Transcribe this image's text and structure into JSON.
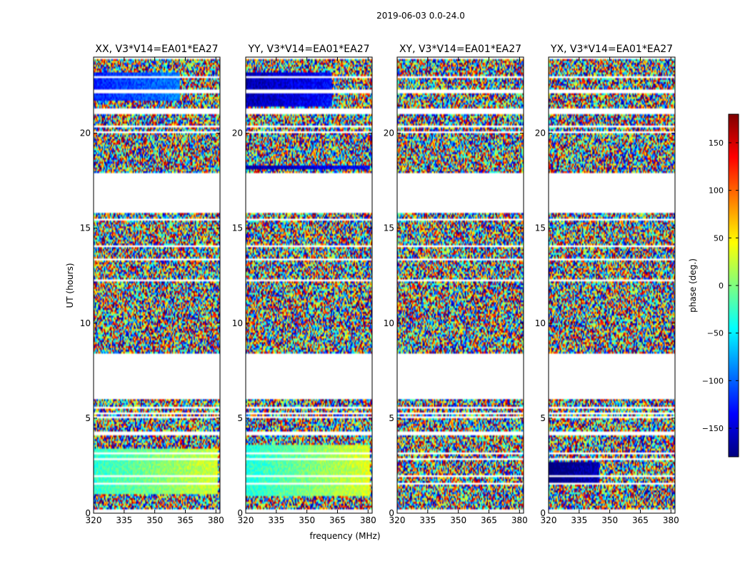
{
  "figure": {
    "suptitle": "2019-06-03 0.0-24.0",
    "xlabel": "frequency (MHz)",
    "ylabel": "UT (hours)"
  },
  "colormap": [
    "#00007f",
    "#0000ff",
    "#007fff",
    "#00ffff",
    "#7fff7f",
    "#ffff00",
    "#ff7f00",
    "#ff0000",
    "#7f0000"
  ],
  "chart_data": {
    "type": "heatmap",
    "x_axis": {
      "label": "frequency (MHz)",
      "range": [
        320,
        382
      ],
      "ticks": [
        320,
        335,
        350,
        365,
        380
      ]
    },
    "y_axis": {
      "label": "UT (hours)",
      "range": [
        0,
        24
      ],
      "ticks": [
        0,
        5,
        10,
        15,
        20
      ]
    },
    "colorbar": {
      "label": "phase (deg.)",
      "range": [
        -180,
        180
      ],
      "ticks": [
        150,
        100,
        50,
        0,
        -50,
        -100,
        -150
      ]
    },
    "panels": [
      {
        "title": "XX, V3*V14=EA01*EA27",
        "coherent": [
          {
            "t0": 1.0,
            "t1": 3.4,
            "center": 0,
            "spread": 60,
            "fmax": 381
          },
          {
            "t0": 21.7,
            "t1": 23.2,
            "center": -100,
            "spread": 50,
            "fmax": 362
          }
        ]
      },
      {
        "title": "YY, V3*V14=EA01*EA27",
        "coherent": [
          {
            "t0": 0.9,
            "t1": 3.6,
            "center": 0,
            "spread": 70,
            "fmax": 381
          },
          {
            "t0": 21.4,
            "t1": 23.2,
            "center": -140,
            "spread": 50,
            "fmax": 362
          },
          {
            "t0": 18.1,
            "t1": 18.3,
            "center": -150,
            "spread": 30,
            "fmax": 381
          }
        ]
      },
      {
        "title": "XY, V3*V14=EA01*EA27",
        "coherent": []
      },
      {
        "title": "YX, V3*V14=EA01*EA27",
        "coherent": [
          {
            "t0": 1.5,
            "t1": 2.7,
            "center": -150,
            "spread": 80,
            "fmax": 345
          }
        ]
      }
    ],
    "flagged_time_ranges": [
      [
        0.0,
        0.15
      ],
      [
        0.48,
        0.55
      ],
      [
        1.45,
        1.6
      ],
      [
        1.9,
        2.0
      ],
      [
        2.8,
        2.9
      ],
      [
        3.1,
        3.2
      ],
      [
        3.65,
        3.75
      ],
      [
        4.1,
        4.3
      ],
      [
        4.95,
        5.1
      ],
      [
        5.25,
        5.3
      ],
      [
        5.55,
        5.6
      ],
      [
        6.05,
        8.4
      ],
      [
        9.3,
        9.35
      ],
      [
        10.7,
        10.75
      ],
      [
        11.2,
        11.25
      ],
      [
        12.25,
        12.35
      ],
      [
        12.7,
        12.75
      ],
      [
        13.0,
        13.05
      ],
      [
        13.35,
        13.4
      ],
      [
        14.0,
        14.1
      ],
      [
        14.5,
        14.55
      ],
      [
        15.0,
        15.05
      ],
      [
        15.45,
        15.5
      ],
      [
        15.85,
        17.9
      ],
      [
        18.1,
        18.15
      ],
      [
        18.7,
        18.75
      ],
      [
        20.0,
        20.1
      ],
      [
        20.3,
        20.4
      ],
      [
        21.0,
        21.3
      ],
      [
        21.5,
        21.55
      ],
      [
        22.15,
        22.3
      ],
      [
        22.9,
        23.05
      ],
      [
        23.5,
        23.55
      ],
      [
        23.9,
        24.0
      ]
    ]
  }
}
